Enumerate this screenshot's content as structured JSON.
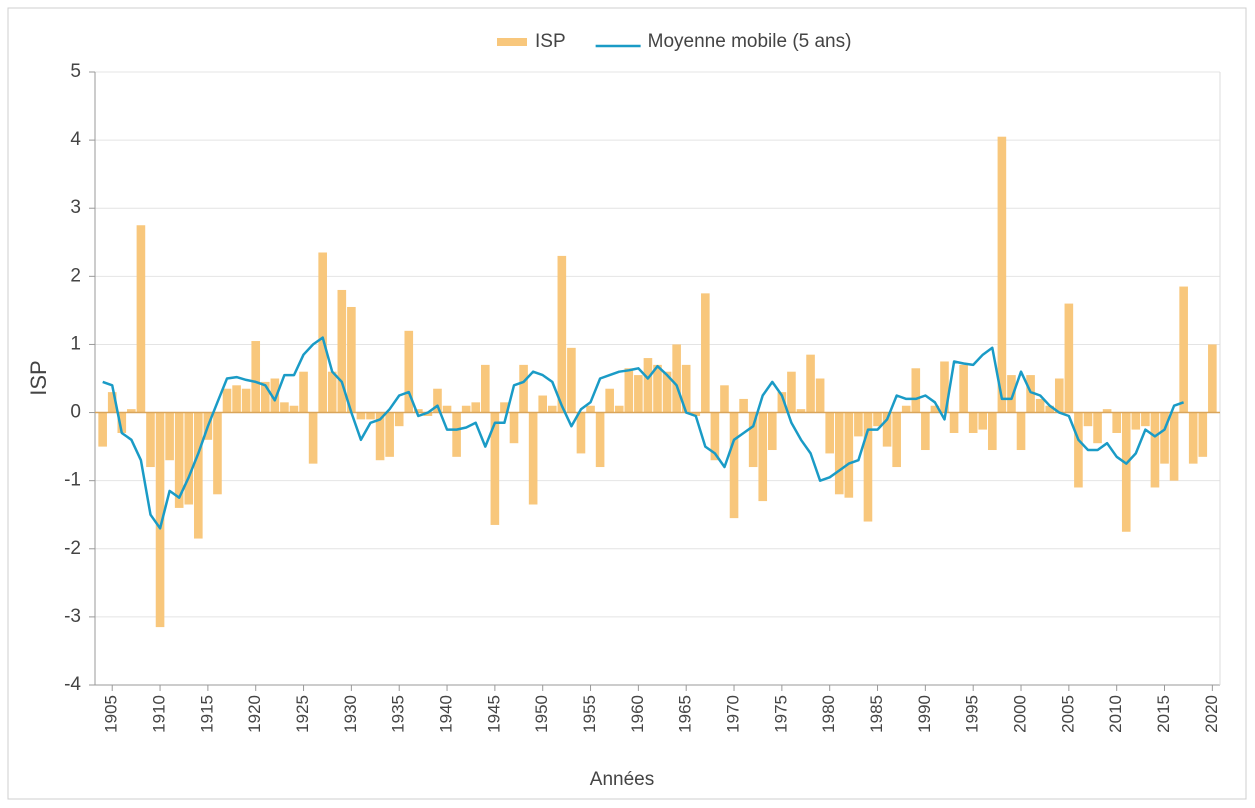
{
  "chart_data": {
    "type": "bar",
    "legend": "top",
    "grid": true,
    "ylabel": "ISP",
    "xlabel": "Années",
    "x": [
      1904,
      1905,
      1906,
      1907,
      1908,
      1909,
      1910,
      1911,
      1912,
      1913,
      1914,
      1915,
      1916,
      1917,
      1918,
      1919,
      1920,
      1921,
      1922,
      1923,
      1924,
      1925,
      1926,
      1927,
      1928,
      1929,
      1930,
      1931,
      1932,
      1933,
      1934,
      1935,
      1936,
      1937,
      1938,
      1939,
      1940,
      1941,
      1942,
      1943,
      1944,
      1945,
      1946,
      1947,
      1948,
      1949,
      1950,
      1951,
      1952,
      1953,
      1954,
      1955,
      1956,
      1957,
      1958,
      1959,
      1960,
      1961,
      1962,
      1963,
      1964,
      1965,
      1966,
      1967,
      1968,
      1969,
      1970,
      1971,
      1972,
      1973,
      1974,
      1975,
      1976,
      1977,
      1978,
      1979,
      1980,
      1981,
      1982,
      1983,
      1984,
      1985,
      1986,
      1987,
      1988,
      1989,
      1990,
      1991,
      1992,
      1993,
      1994,
      1995,
      1996,
      1997,
      1998,
      1999,
      2000,
      2001,
      2002,
      2003,
      2004,
      2005,
      2006,
      2007,
      2008,
      2009,
      2010,
      2011,
      2012,
      2013,
      2014,
      2015,
      2016,
      2017,
      2018,
      2019,
      2020
    ],
    "series": [
      {
        "name": "ISP",
        "type": "bar",
        "color": "#f8c77c",
        "values": [
          -0.5,
          0.3,
          -0.3,
          0.05,
          2.75,
          -0.8,
          -3.15,
          -0.7,
          -1.4,
          -1.35,
          -1.85,
          -0.4,
          -1.2,
          0.35,
          0.4,
          0.35,
          1.05,
          0.45,
          0.5,
          0.15,
          0.1,
          0.6,
          -0.75,
          2.35,
          0.6,
          1.8,
          1.55,
          -0.1,
          -0.1,
          -0.7,
          -0.65,
          -0.2,
          1.2,
          0.05,
          -0.05,
          0.35,
          0.1,
          -0.65,
          0.1,
          0.15,
          0.7,
          -1.65,
          0.15,
          -0.45,
          0.7,
          -1.35,
          0.25,
          0.1,
          2.3,
          0.95,
          -0.6,
          0.1,
          -0.8,
          0.35,
          0.1,
          0.65,
          0.55,
          0.8,
          0.7,
          0.6,
          1.0,
          0.7,
          -0.05,
          1.75,
          -0.7,
          0.4,
          -1.55,
          0.2,
          -0.8,
          -1.3,
          -0.55,
          0.3,
          0.6,
          0.05,
          0.85,
          0.5,
          -0.6,
          -1.2,
          -1.25,
          -0.35,
          -1.6,
          -0.2,
          -0.5,
          -0.8,
          0.1,
          0.65,
          -0.55,
          0.1,
          0.75,
          -0.3,
          0.7,
          -0.3,
          -0.25,
          -0.55,
          4.05,
          0.55,
          -0.55,
          0.55,
          0.2,
          0.1,
          0.5,
          1.6,
          -1.1,
          -0.2,
          -0.45,
          0.05,
          -0.3,
          -1.75,
          -0.25,
          -0.2,
          -1.1,
          -0.75,
          -1.0,
          1.85,
          -0.75,
          -0.65,
          1.0
        ]
      },
      {
        "name": "Moyenne mobile (5 ans)",
        "type": "line",
        "color": "#1a9bc6",
        "values": [
          0.45,
          0.4,
          -0.3,
          -0.4,
          -0.7,
          -1.5,
          -1.7,
          -1.15,
          -1.25,
          -0.95,
          -0.6,
          -0.2,
          0.15,
          0.5,
          0.52,
          0.48,
          0.45,
          0.4,
          0.18,
          0.55,
          0.55,
          0.85,
          1.0,
          1.1,
          0.6,
          0.45,
          0.0,
          -0.4,
          -0.15,
          -0.1,
          0.05,
          0.25,
          0.3,
          -0.05,
          0.0,
          0.1,
          -0.25,
          -0.25,
          -0.22,
          -0.15,
          -0.5,
          -0.15,
          -0.15,
          0.4,
          0.45,
          0.6,
          0.55,
          0.45,
          0.1,
          -0.2,
          0.05,
          0.15,
          0.5,
          0.55,
          0.6,
          0.62,
          0.65,
          0.5,
          0.68,
          0.55,
          0.4,
          0.0,
          -0.05,
          -0.5,
          -0.6,
          -0.8,
          -0.4,
          -0.3,
          -0.2,
          0.25,
          0.45,
          0.25,
          -0.15,
          -0.4,
          -0.6,
          -1.0,
          -0.95,
          -0.85,
          -0.75,
          -0.7,
          -0.25,
          -0.25,
          -0.1,
          0.25,
          0.2,
          0.2,
          0.25,
          0.15,
          -0.1,
          0.75,
          0.72,
          0.7,
          0.85,
          0.95,
          0.2,
          0.2,
          0.6,
          0.3,
          0.25,
          0.1,
          0.0,
          -0.05,
          -0.4,
          -0.55,
          -0.55,
          -0.45,
          -0.65,
          -0.75,
          -0.6,
          -0.25,
          -0.35,
          -0.25,
          0.1,
          0.15,
          null,
          null,
          null
        ]
      }
    ],
    "xlim": [
      1903.2,
      2020.8
    ],
    "xticks": [
      1905,
      1910,
      1915,
      1920,
      1925,
      1930,
      1935,
      1940,
      1945,
      1950,
      1955,
      1960,
      1965,
      1970,
      1975,
      1980,
      1985,
      1990,
      1995,
      2000,
      2005,
      2010,
      2015,
      2020
    ],
    "ylim": [
      -4,
      5
    ],
    "yticks": [
      -4,
      -3,
      -2,
      -1,
      0,
      1,
      2,
      3,
      4,
      5
    ]
  }
}
